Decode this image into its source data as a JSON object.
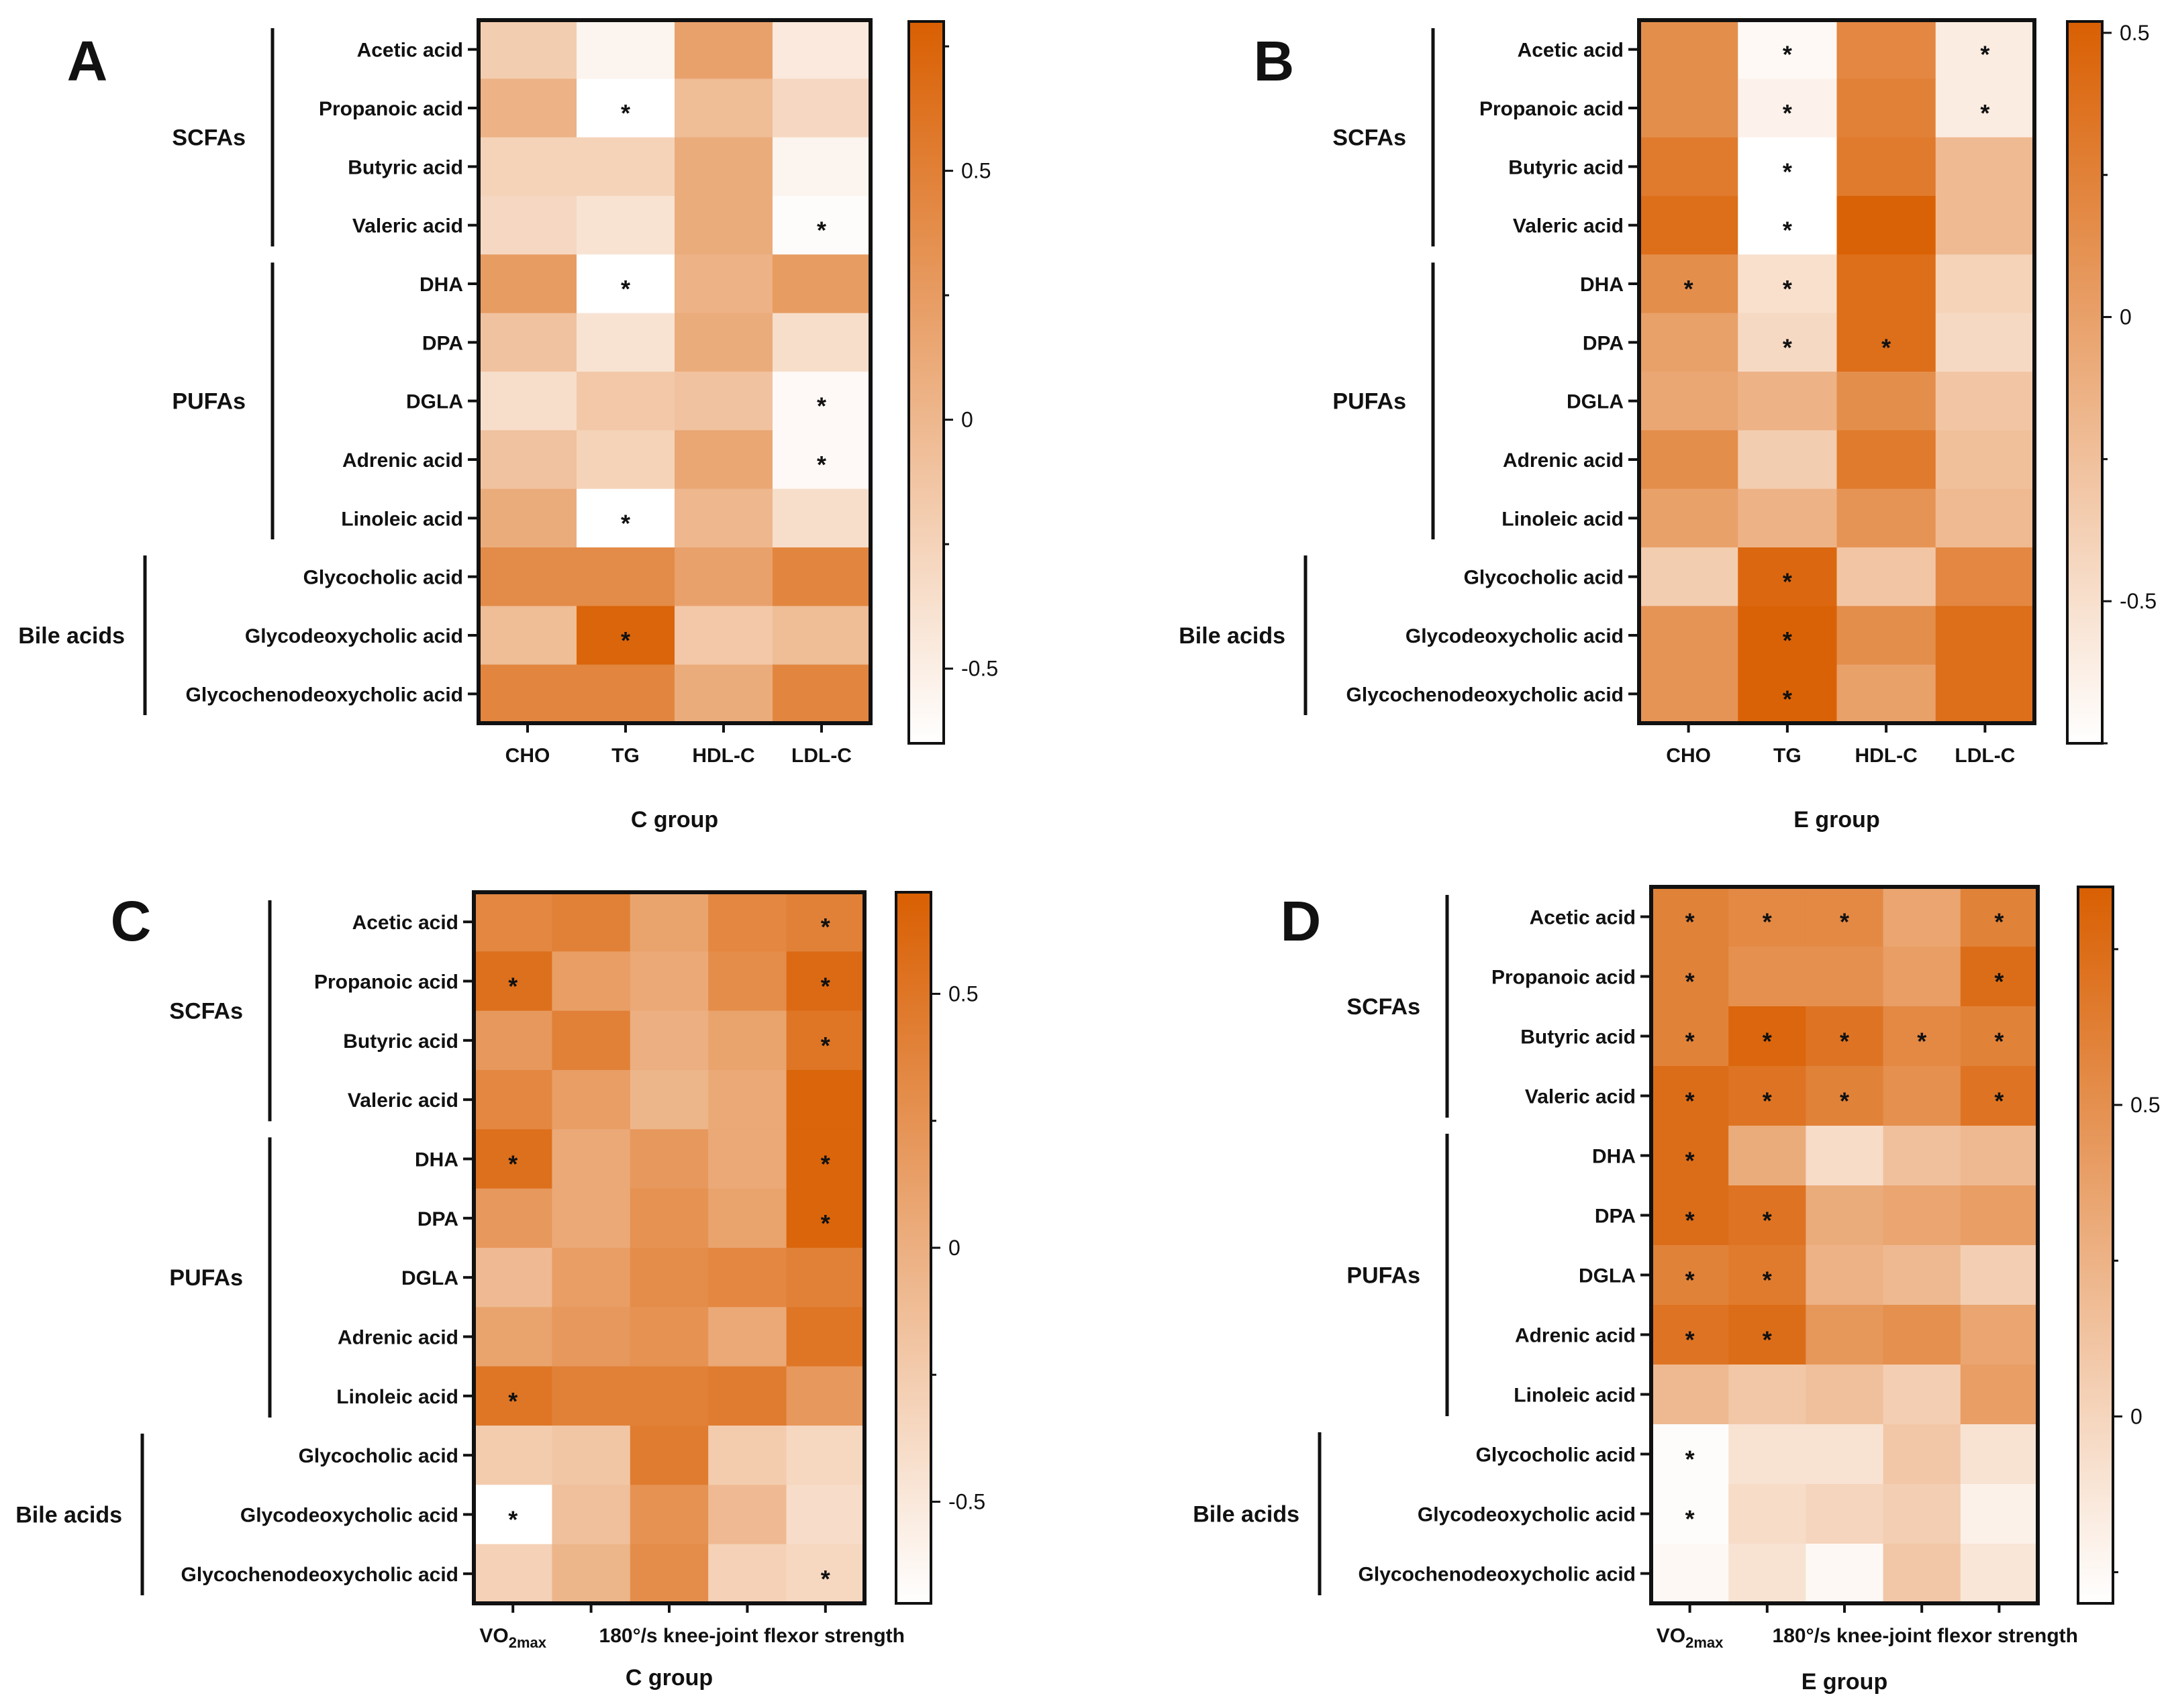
{
  "row_labels": [
    "Acetic acid",
    "Propanoic acid",
    "Butyric acid",
    "Valeric acid",
    "DHA",
    "DPA",
    "DGLA",
    "Adrenic acid",
    "Linoleic acid",
    "Glycocholic acid",
    "Glycodeoxycholic acid",
    "Glycochenodeoxycholic acid"
  ],
  "row_groups": [
    {
      "name": "SCFAs",
      "start": 0,
      "end": 3
    },
    {
      "name": "PUFAs",
      "start": 4,
      "end": 8
    },
    {
      "name": "Bile acids",
      "start": 9,
      "end": 11
    }
  ],
  "colors": {
    "low": "#ffffff",
    "high": "#d95f02",
    "frame": "#111111"
  },
  "chart_data": [
    {
      "panel": "A",
      "type": "heatmap",
      "title": "",
      "xlabel": "C group",
      "columns": [
        "CHO",
        "TG",
        "HDL-C",
        "LDL-C"
      ],
      "col_label_parts": [
        [
          {
            "t": "CHO"
          }
        ],
        [
          {
            "t": "TG"
          }
        ],
        [
          {
            "t": "HDL-C"
          }
        ],
        [
          {
            "t": "LDL-C"
          }
        ]
      ],
      "col_label_mode": "all",
      "colorbar": {
        "min": -0.65,
        "max": 0.8,
        "ticks": [
          0.5,
          0,
          -0.5
        ],
        "tick_labels": [
          "0.5",
          "0",
          "-0.5"
        ]
      },
      "values": [
        [
          -0.2,
          -0.55,
          0.2,
          -0.45
        ],
        [
          0.05,
          -0.65,
          -0.05,
          -0.3
        ],
        [
          -0.25,
          -0.25,
          0.1,
          -0.55
        ],
        [
          -0.3,
          -0.4,
          0.1,
          -0.62
        ],
        [
          0.25,
          -0.65,
          0.05,
          0.25
        ],
        [
          -0.1,
          -0.4,
          0.1,
          -0.35
        ],
        [
          -0.35,
          -0.15,
          -0.1,
          -0.6
        ],
        [
          -0.1,
          -0.25,
          0.15,
          -0.6
        ],
        [
          0.1,
          -0.65,
          0.0,
          -0.35
        ],
        [
          0.4,
          0.4,
          0.2,
          0.45
        ],
        [
          -0.05,
          0.75,
          -0.15,
          -0.05
        ],
        [
          0.45,
          0.45,
          0.1,
          0.45
        ]
      ],
      "stars": [
        [
          1,
          1
        ],
        [
          4,
          1
        ],
        [
          8,
          1
        ],
        [
          10,
          1
        ],
        [
          3,
          3
        ],
        [
          6,
          3
        ],
        [
          7,
          3
        ]
      ],
      "star_symbol": "*"
    },
    {
      "panel": "B",
      "type": "heatmap",
      "title": "",
      "xlabel": "E group",
      "columns": [
        "CHO",
        "TG",
        "HDL-C",
        "LDL-C"
      ],
      "col_label_parts": [
        [
          {
            "t": "CHO"
          }
        ],
        [
          {
            "t": "TG"
          }
        ],
        [
          {
            "t": "HDL-C"
          }
        ],
        [
          {
            "t": "LDL-C"
          }
        ]
      ],
      "col_label_mode": "all",
      "colorbar": {
        "min": -0.75,
        "max": 0.52,
        "ticks": [
          0.5,
          0,
          -0.5
        ],
        "tick_labels": [
          "0.5",
          "0",
          "-0.5"
        ]
      },
      "values": [
        [
          0.15,
          -0.7,
          0.2,
          -0.6
        ],
        [
          0.15,
          -0.65,
          0.25,
          -0.6
        ],
        [
          0.3,
          -0.75,
          0.3,
          -0.2
        ],
        [
          0.4,
          -0.75,
          0.5,
          -0.2
        ],
        [
          0.15,
          -0.5,
          0.4,
          -0.4
        ],
        [
          0.0,
          -0.45,
          0.4,
          -0.45
        ],
        [
          -0.05,
          -0.15,
          0.15,
          -0.3
        ],
        [
          0.15,
          -0.35,
          0.3,
          -0.25
        ],
        [
          0.0,
          -0.15,
          0.1,
          -0.2
        ],
        [
          -0.35,
          0.45,
          -0.3,
          0.2
        ],
        [
          0.1,
          0.5,
          0.15,
          0.4
        ],
        [
          0.1,
          0.5,
          0.0,
          0.4
        ]
      ],
      "stars": [
        [
          0,
          1
        ],
        [
          1,
          1
        ],
        [
          2,
          1
        ],
        [
          3,
          1
        ],
        [
          4,
          1
        ],
        [
          5,
          1
        ],
        [
          9,
          1
        ],
        [
          10,
          1
        ],
        [
          11,
          1
        ],
        [
          0,
          3
        ],
        [
          1,
          3
        ],
        [
          4,
          0
        ],
        [
          5,
          2
        ]
      ],
      "star_symbol": "*"
    },
    {
      "panel": "C",
      "type": "heatmap",
      "title": "",
      "xlabel": "C group",
      "columns": [
        "VO2max",
        "",
        "",
        "",
        "180°/s knee-joint flexor strength"
      ],
      "col_label_parts": [
        [
          {
            "t": "VO"
          },
          {
            "t": "2max",
            "sub": true
          }
        ],
        [],
        [],
        [],
        [
          {
            "t": "180°/s knee-joint flexor strength"
          }
        ]
      ],
      "col_label_mode": "split",
      "colorbar": {
        "min": -0.7,
        "max": 0.7,
        "ticks": [
          0.5,
          0,
          -0.5
        ],
        "tick_labels": [
          "0.5",
          "0",
          "-0.5"
        ]
      },
      "values": [
        [
          0.35,
          0.4,
          0.1,
          0.35,
          0.4
        ],
        [
          0.55,
          0.15,
          0.05,
          0.3,
          0.6
        ],
        [
          0.2,
          0.4,
          0.0,
          0.1,
          0.5
        ],
        [
          0.35,
          0.15,
          -0.05,
          0.05,
          0.65
        ],
        [
          0.55,
          0.05,
          0.2,
          0.05,
          0.65
        ],
        [
          0.2,
          0.05,
          0.25,
          0.1,
          0.65
        ],
        [
          -0.1,
          0.15,
          0.3,
          0.35,
          0.4
        ],
        [
          0.1,
          0.2,
          0.25,
          0.05,
          0.5
        ],
        [
          0.5,
          0.4,
          0.4,
          0.45,
          0.2
        ],
        [
          -0.25,
          -0.2,
          0.45,
          -0.25,
          -0.35
        ],
        [
          -0.7,
          -0.15,
          0.25,
          -0.1,
          -0.4
        ],
        [
          -0.3,
          -0.05,
          0.3,
          -0.3,
          -0.35
        ]
      ],
      "stars": [
        [
          1,
          0
        ],
        [
          4,
          0
        ],
        [
          8,
          0
        ],
        [
          10,
          0
        ],
        [
          0,
          4
        ],
        [
          1,
          4
        ],
        [
          2,
          4
        ],
        [
          4,
          4
        ],
        [
          5,
          4
        ],
        [
          11,
          4
        ]
      ],
      "star_symbol": "*"
    },
    {
      "panel": "D",
      "type": "heatmap",
      "title": "",
      "xlabel": "E group",
      "columns": [
        "VO2max",
        "",
        "",
        "",
        "180°/s knee-joint flexor strength"
      ],
      "col_label_parts": [
        [
          {
            "t": "VO"
          },
          {
            "t": "2max",
            "sub": true
          }
        ],
        [],
        [],
        [],
        [
          {
            "t": "180°/s knee-joint flexor strength"
          }
        ]
      ],
      "col_label_mode": "split",
      "colorbar": {
        "min": -0.3,
        "max": 0.85,
        "ticks": [
          0.5,
          0
        ],
        "tick_labels": [
          "0.5",
          "0"
        ]
      },
      "values": [
        [
          0.6,
          0.55,
          0.55,
          0.35,
          0.6
        ],
        [
          0.6,
          0.5,
          0.5,
          0.4,
          0.75
        ],
        [
          0.6,
          0.8,
          0.7,
          0.55,
          0.6
        ],
        [
          0.75,
          0.7,
          0.6,
          0.5,
          0.7
        ],
        [
          0.75,
          0.3,
          -0.05,
          0.15,
          0.2
        ],
        [
          0.75,
          0.7,
          0.3,
          0.35,
          0.4
        ],
        [
          0.6,
          0.65,
          0.25,
          0.2,
          0.05
        ],
        [
          0.7,
          0.75,
          0.45,
          0.5,
          0.35
        ],
        [
          0.2,
          0.1,
          0.15,
          0.05,
          0.4
        ],
        [
          -0.28,
          -0.1,
          -0.1,
          0.1,
          -0.1
        ],
        [
          -0.28,
          -0.05,
          0.0,
          0.05,
          -0.2
        ],
        [
          -0.25,
          -0.1,
          -0.25,
          0.1,
          -0.12
        ]
      ],
      "stars": [
        [
          0,
          0
        ],
        [
          1,
          0
        ],
        [
          2,
          0
        ],
        [
          3,
          0
        ],
        [
          4,
          0
        ],
        [
          5,
          0
        ],
        [
          6,
          0
        ],
        [
          7,
          0
        ],
        [
          9,
          0
        ],
        [
          10,
          0
        ],
        [
          0,
          1
        ],
        [
          2,
          1
        ],
        [
          3,
          1
        ],
        [
          5,
          1
        ],
        [
          6,
          1
        ],
        [
          7,
          1
        ],
        [
          0,
          2
        ],
        [
          2,
          2
        ],
        [
          3,
          2
        ],
        [
          2,
          3
        ],
        [
          0,
          4
        ],
        [
          1,
          4
        ],
        [
          2,
          4
        ],
        [
          3,
          4
        ]
      ],
      "star_symbol": "*"
    }
  ]
}
